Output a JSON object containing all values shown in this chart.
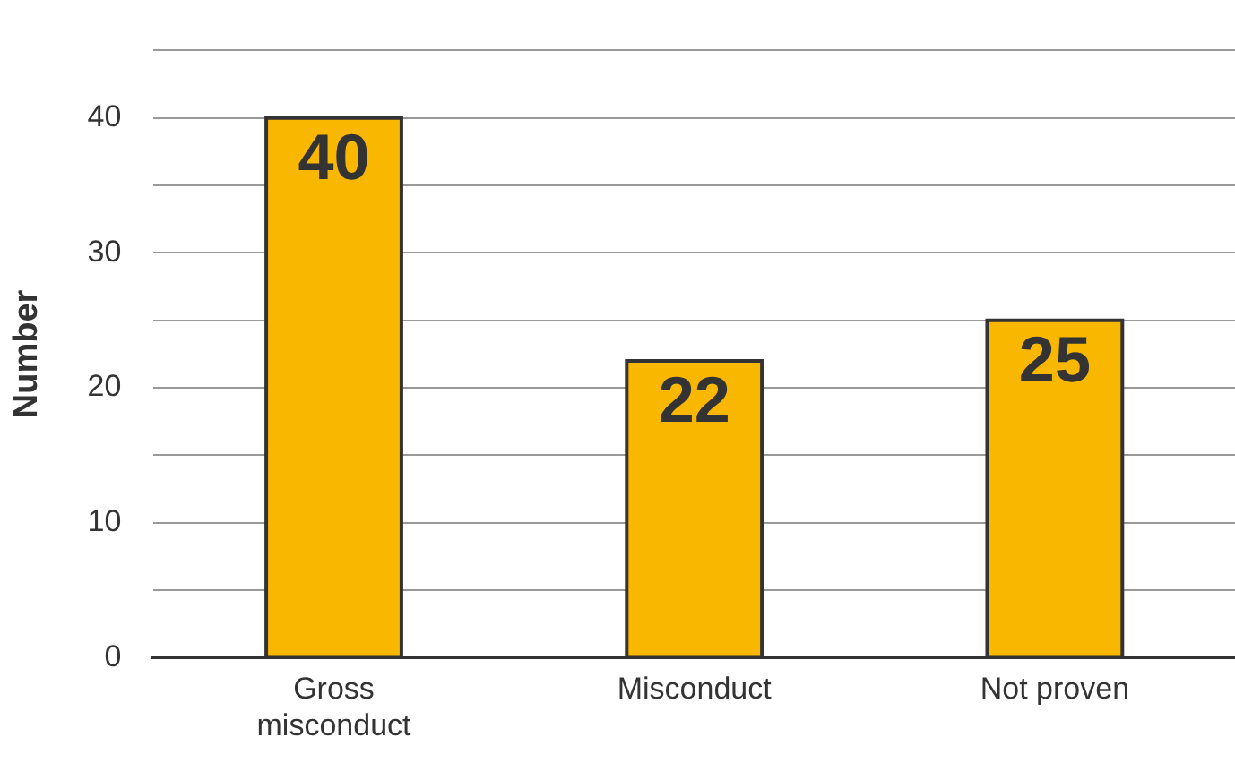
{
  "chart_data": {
    "type": "bar",
    "ylabel": "Number",
    "categories": [
      "Gross misconduct",
      "Misconduct",
      "Not proven"
    ],
    "values": [
      40,
      22,
      25
    ],
    "color": "#f9b700",
    "ylim": [
      0,
      45
    ],
    "yticks": [
      0,
      {
        "value": 5,
        "label": null
      },
      10,
      {
        "value": 15,
        "label": null
      },
      20,
      {
        "value": 25,
        "label": null
      },
      30,
      {
        "value": 35,
        "label": null
      },
      40,
      {
        "value": 45,
        "label": null
      }
    ],
    "grid": "y",
    "data_labels": true,
    "legend": false
  }
}
